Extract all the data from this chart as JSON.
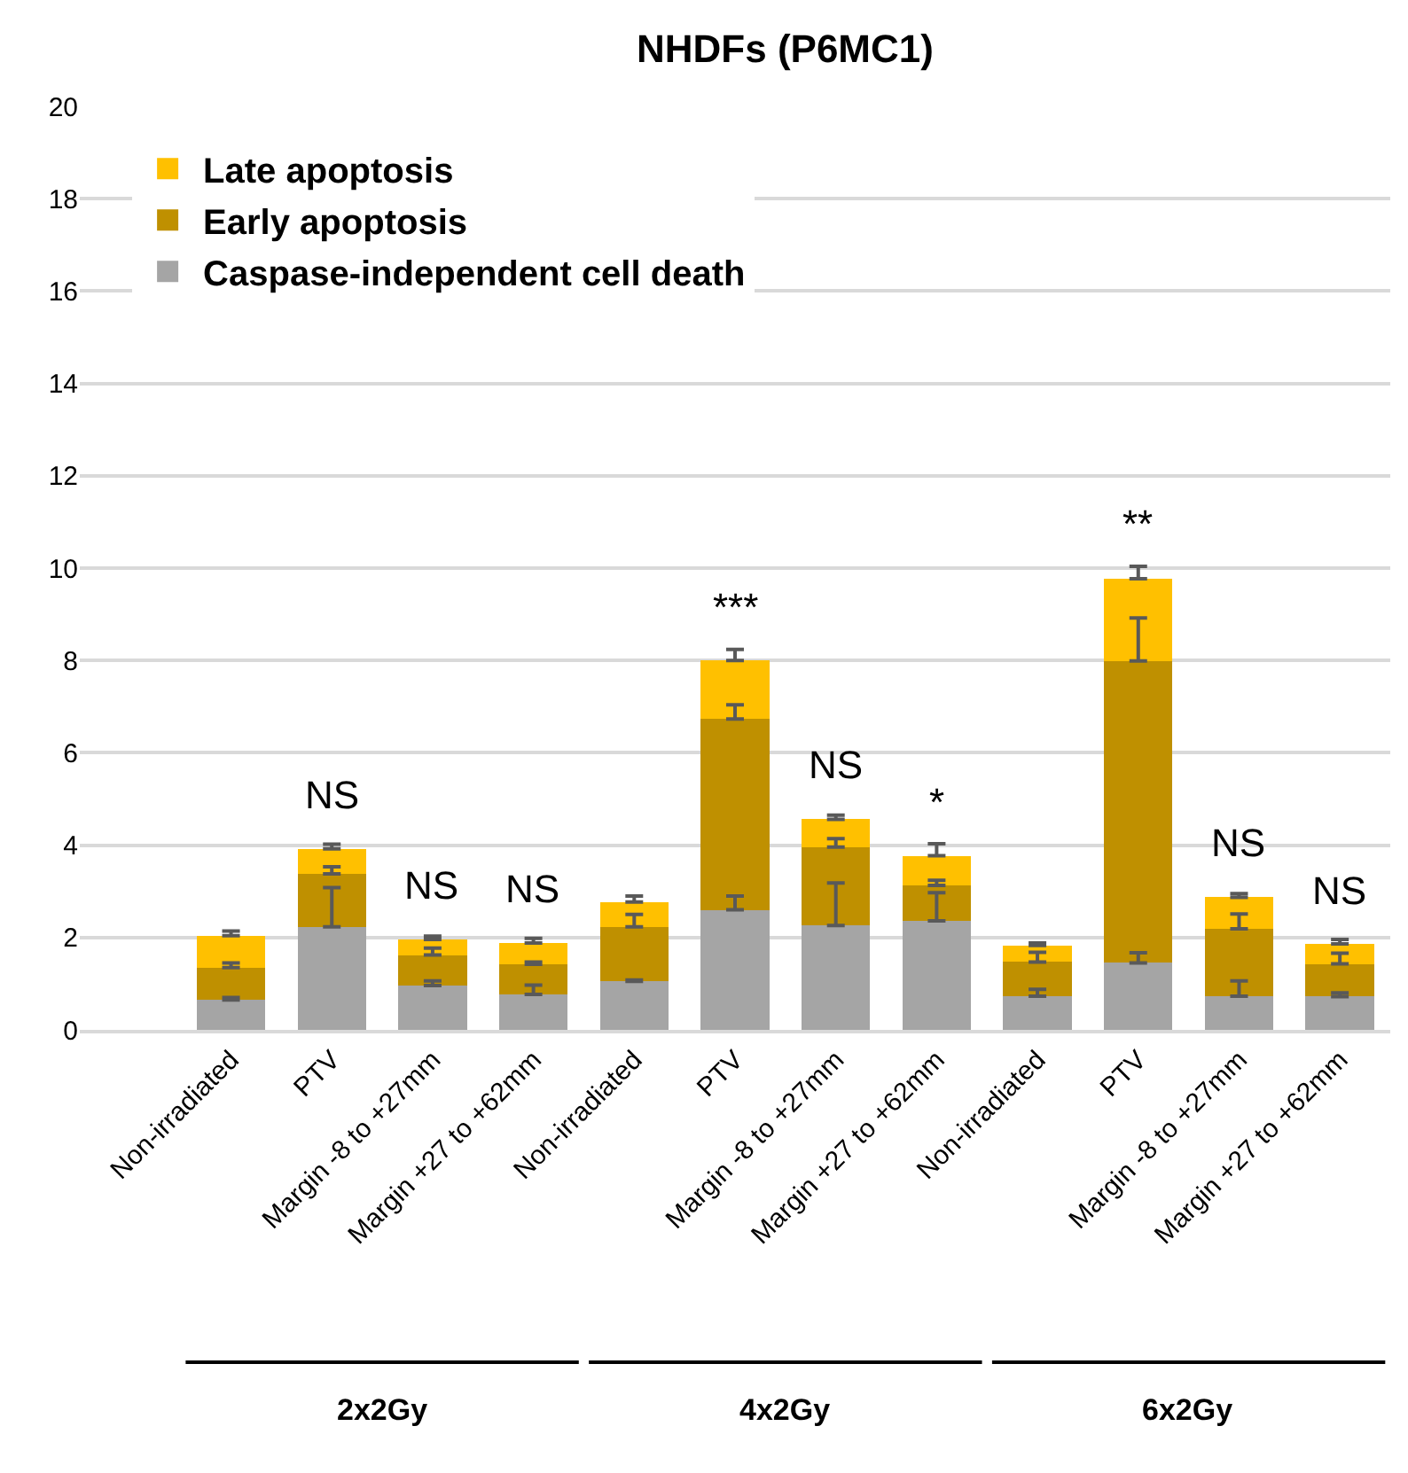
{
  "chart_data": [
    {
      "type": "bar",
      "stacked": true,
      "xlabel": "2x2Gy",
      "categories": [
        "Non-irradiated",
        "PTV",
        "Margin -8 to +27mm",
        "Margin +27 to +62mm"
      ],
      "series": [
        {
          "name": "Caspase-independent cell death",
          "color": "#a5a5a5",
          "values": [
            0.65,
            2.23,
            0.96,
            0.77
          ],
          "errors": [
            [
              0.65,
              0.7
            ],
            [
              2.23,
              3.08
            ],
            [
              0.96,
              1.06
            ],
            [
              0.77,
              0.97
            ]
          ]
        },
        {
          "name": "Early apoptosis",
          "color": "#bf9000",
          "values": [
            0.7,
            1.15,
            0.66,
            0.65
          ],
          "errors": [
            [
              1.35,
              1.45
            ],
            [
              3.38,
              3.53
            ],
            [
              1.62,
              1.77
            ],
            [
              1.42,
              1.47
            ]
          ]
        },
        {
          "name": "Late apoptosis",
          "color": "#ffc000",
          "values": [
            0.69,
            0.54,
            0.34,
            0.46
          ],
          "errors": [
            [
              2.04,
              2.14
            ],
            [
              3.92,
              4.02
            ],
            [
              1.96,
              2.03
            ],
            [
              1.88,
              1.98
            ]
          ]
        }
      ],
      "ylim": [
        0,
        20
      ],
      "yticks": [
        0,
        2,
        4,
        6,
        8,
        10,
        12,
        14,
        16,
        18,
        20
      ],
      "grid": "y",
      "legend": "top right",
      "annotations": [
        {
          "text": "NS",
          "x": "PTV",
          "y": 3.92
        },
        {
          "text": "NS",
          "x": "Margin -8 to +27mm",
          "y": 1.96
        },
        {
          "text": "NS",
          "x": "Margin +27 to +62mm",
          "y": 1.88
        }
      ]
    },
    {
      "type": "bar",
      "title": "NHDFs (P6MC1)",
      "stacked": true,
      "xlabel": "4x2Gy",
      "tick_labels": "x",
      "categories": [
        "Non-irradiated",
        "PTV",
        "Margin -8 to +27mm",
        "Margin +27 to +62mm"
      ],
      "series": [
        {
          "color": "#a5a5a5",
          "values": [
            1.05,
            2.6,
            2.26,
            2.36
          ],
          "errors": [
            [
              1.05,
              1.08
            ],
            [
              2.6,
              2.9
            ],
            [
              2.26,
              3.18
            ],
            [
              2.36,
              2.97
            ]
          ]
        },
        {
          "color": "#bf9000",
          "values": [
            1.18,
            4.13,
            1.7,
            0.77
          ],
          "errors": [
            [
              2.23,
              2.5
            ],
            [
              6.73,
              7.04
            ],
            [
              3.96,
              4.14
            ],
            [
              3.13,
              3.24
            ]
          ]
        },
        {
          "color": "#ffc000",
          "values": [
            0.54,
            1.27,
            0.6,
            0.64
          ],
          "errors": [
            [
              2.77,
              2.9
            ],
            [
              8.0,
              8.24
            ],
            [
              4.56,
              4.65
            ],
            [
              3.77,
              4.03
            ]
          ]
        }
      ],
      "ylim": [
        0,
        20
      ],
      "yticks": [
        0,
        2,
        4,
        6,
        8,
        10,
        12,
        14,
        16,
        18,
        20
      ],
      "grid": "y",
      "annotations": [
        {
          "text": "***",
          "x": "PTV",
          "y": 8.0
        },
        {
          "text": "NS",
          "x": "Margin -8 to +27mm",
          "y": 4.56
        },
        {
          "text": "*",
          "x": "Margin +27 to +62mm",
          "y": 3.77
        }
      ]
    },
    {
      "type": "bar",
      "stacked": true,
      "xlabel": "6x2Gy",
      "tick_labels": "x",
      "categories": [
        "Non-irradiated",
        "PTV",
        "Margin -8 to +27mm",
        "Margin +27 to +62mm"
      ],
      "series": [
        {
          "color": "#a5a5a5",
          "values": [
            0.73,
            1.45,
            0.73,
            0.72
          ],
          "errors": [
            [
              0.73,
              0.88
            ],
            [
              1.45,
              1.67
            ],
            [
              0.73,
              1.06
            ],
            [
              0.72,
              0.8
            ]
          ]
        },
        {
          "color": "#bf9000",
          "values": [
            0.74,
            6.54,
            1.46,
            0.71
          ],
          "errors": [
            [
              1.47,
              1.68
            ],
            [
              7.99,
              8.92
            ],
            [
              2.19,
              2.51
            ],
            [
              1.43,
              1.66
            ]
          ]
        },
        {
          "color": "#ffc000",
          "values": [
            0.36,
            1.78,
            0.68,
            0.43
          ],
          "errors": [
            [
              1.83,
              1.88
            ],
            [
              9.77,
              10.04
            ],
            [
              2.87,
              2.95
            ],
            [
              1.86,
              1.96
            ]
          ]
        }
      ],
      "ylim": [
        0,
        20
      ],
      "yticks": [
        0,
        2,
        4,
        6,
        8,
        10,
        12,
        14,
        16,
        18,
        20
      ],
      "grid": "y",
      "annotations": [
        {
          "text": "**",
          "x": "PTV",
          "y": 9.77
        },
        {
          "text": "NS",
          "x": "Margin -8 to +27mm",
          "y": 2.87
        },
        {
          "text": "NS",
          "x": "Margin +27 to +62mm",
          "y": 1.86
        }
      ]
    }
  ]
}
